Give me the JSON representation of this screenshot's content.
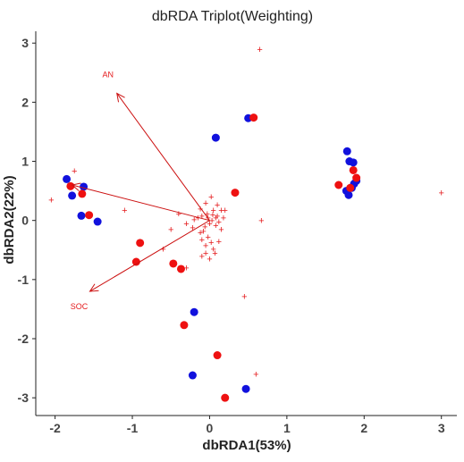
{
  "chart_data": {
    "type": "scatter",
    "title": "dbRDA Triplot(Weighting)",
    "xlabel": "dbRDA1(53%)",
    "ylabel": "dbRDA2(22%)",
    "xlim": [
      -2.25,
      3.2
    ],
    "ylim": [
      -3.3,
      3.2
    ],
    "x_ticks": [
      -2,
      -1,
      0,
      1,
      2,
      3
    ],
    "y_ticks": [
      -3,
      -2,
      -1,
      0,
      1,
      2,
      3
    ],
    "grid": false,
    "colors": {
      "group_red": "#ee1111",
      "group_blue": "#1111dd",
      "species": "#e41a1c",
      "arrow": "#cc1111",
      "axis": "#222222"
    },
    "series": [
      {
        "color": "#1111dd",
        "points": [
          [
            -1.85,
            0.7
          ],
          [
            -1.78,
            0.42
          ],
          [
            -1.63,
            0.57
          ],
          [
            -1.66,
            0.08
          ],
          [
            -1.45,
            -0.02
          ],
          [
            0.08,
            1.4
          ],
          [
            0.5,
            1.73
          ],
          [
            1.78,
            1.17
          ],
          [
            1.81,
            1.0
          ],
          [
            1.86,
            0.98
          ],
          [
            1.87,
            0.62
          ],
          [
            1.9,
            0.67
          ],
          [
            1.77,
            0.5
          ],
          [
            1.8,
            0.43
          ],
          [
            1.84,
            0.55
          ],
          [
            -0.2,
            -1.55
          ],
          [
            -0.22,
            -2.62
          ],
          [
            0.47,
            -2.85
          ]
        ]
      },
      {
        "color": "#ee1111",
        "points": [
          [
            -1.8,
            0.58
          ],
          [
            -1.65,
            0.45
          ],
          [
            -1.56,
            0.09
          ],
          [
            -0.9,
            -0.38
          ],
          [
            -0.95,
            -0.7
          ],
          [
            -0.47,
            -0.73
          ],
          [
            -0.37,
            -0.82
          ],
          [
            -0.33,
            -1.77
          ],
          [
            0.1,
            -2.28
          ],
          [
            0.2,
            -3.0
          ],
          [
            0.33,
            0.47
          ],
          [
            0.57,
            1.74
          ],
          [
            1.67,
            0.6
          ],
          [
            1.86,
            0.85
          ],
          [
            1.9,
            0.72
          ],
          [
            1.82,
            0.55
          ]
        ]
      }
    ],
    "species_points": [
      [
        -2.05,
        0.35
      ],
      [
        -1.75,
        0.84
      ],
      [
        -1.1,
        0.18
      ],
      [
        -0.4,
        0.12
      ],
      [
        -0.6,
        -0.48
      ],
      [
        -0.5,
        -0.15
      ],
      [
        -0.3,
        -0.05
      ],
      [
        -0.1,
        0.08
      ],
      [
        0.05,
        0.18
      ],
      [
        0.02,
        0.4
      ],
      [
        0.1,
        0.27
      ],
      [
        -0.05,
        0.3
      ],
      [
        0.15,
        0.18
      ],
      [
        -0.12,
        0.2
      ],
      [
        0.08,
        -0.08
      ],
      [
        -0.08,
        -0.18
      ],
      [
        -0.02,
        -0.28
      ],
      [
        0.02,
        -0.37
      ],
      [
        -0.05,
        -0.42
      ],
      [
        0.05,
        -0.48
      ],
      [
        0.12,
        -0.02
      ],
      [
        0.18,
        0.05
      ],
      [
        0.2,
        0.18
      ],
      [
        -0.22,
        -0.12
      ],
      [
        0.0,
        -0.05
      ],
      [
        -0.02,
        0.05
      ],
      [
        0.03,
        0.0
      ],
      [
        -0.15,
        0.05
      ],
      [
        -0.1,
        -0.6
      ],
      [
        0.0,
        -0.65
      ],
      [
        -0.05,
        -0.55
      ],
      [
        -0.1,
        -0.32
      ],
      [
        -0.12,
        -0.2
      ],
      [
        0.07,
        -0.55
      ],
      [
        0.12,
        -0.35
      ],
      [
        -0.2,
        0.02
      ],
      [
        0.15,
        -0.15
      ],
      [
        -0.03,
        0.12
      ],
      [
        0.04,
        0.1
      ],
      [
        0.1,
        0.08
      ],
      [
        -0.06,
        -0.1
      ],
      [
        0.08,
        0.05
      ],
      [
        0.65,
        2.9
      ],
      [
        0.67,
        -0.0
      ],
      [
        0.45,
        -1.28
      ],
      [
        0.6,
        -2.6
      ],
      [
        3.0,
        0.47
      ],
      [
        -0.3,
        -0.8
      ]
    ],
    "arrows": [
      {
        "label": "AN",
        "x": -1.2,
        "y": 2.15
      },
      {
        "label": "SOC",
        "x": -1.55,
        "y": -1.2
      },
      {
        "label": "",
        "x": -1.78,
        "y": 0.6
      }
    ]
  }
}
